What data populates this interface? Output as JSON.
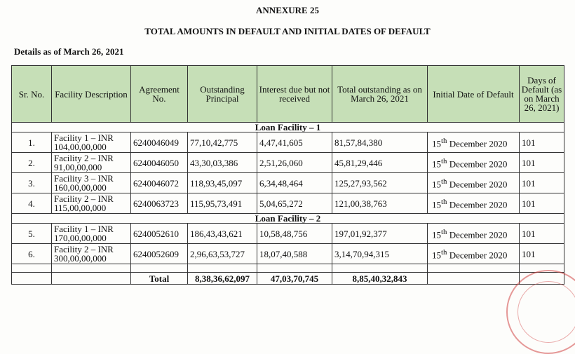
{
  "heading": "ANNEXURE 25",
  "subheading": "TOTAL AMOUNTS IN DEFAULT AND INITIAL DATES OF DEFAULT",
  "as_of": "Details as of March 26, 2021",
  "columns": {
    "sr": "Sr. No.",
    "desc": "Facility Description",
    "agreement": "Agreement No.",
    "principal": "Outstanding Principal",
    "interest": "Interest due but not received",
    "total": "Total outstanding as on March 26, 2021",
    "date": "Initial Date of Default",
    "days": "Days of Default (as on March 26, 2021)"
  },
  "sections": [
    {
      "title": "Loan Facility – 1",
      "rows": [
        {
          "sr": "1.",
          "desc": "Facility 1 – INR 104,00,00,000",
          "agreement": "6240046049",
          "principal": "77,10,42,775",
          "interest": "4,47,41,605",
          "total": "81,57,84,380",
          "day": "15",
          "day_suffix": "th",
          "date_rest": " December 2020",
          "days": "101"
        },
        {
          "sr": "2.",
          "desc": "Facility 2 – INR 91,00,00,000",
          "agreement": "6240046050",
          "principal": "43,30,03,386",
          "interest": "2,51,26,060",
          "total": "45,81,29,446",
          "day": "15",
          "day_suffix": "th",
          "date_rest": " December 2020",
          "days": "101"
        },
        {
          "sr": "3.",
          "desc": "Facility 3 – INR 160,00,00,000",
          "agreement": "6240046072",
          "principal": "118,93,45,097",
          "interest": "6,34,48,464",
          "total": "125,27,93,562",
          "day": "15",
          "day_suffix": "th",
          "date_rest": " December 2020",
          "days": "101"
        },
        {
          "sr": "4.",
          "desc": "Facility 2 – INR 115,00,00,000",
          "agreement": "6240063723",
          "principal": "115,95,73,491",
          "interest": "5,04,65,272",
          "total": "121,00,38,763",
          "day": "15",
          "day_suffix": "th",
          "date_rest": " December 2020",
          "days": "101"
        }
      ]
    },
    {
      "title": "Loan Facility – 2",
      "rows": [
        {
          "sr": "5.",
          "desc": "Facility 1 – INR 170,00,00,000",
          "agreement": "6240052610",
          "principal": "186,43,43,621",
          "interest": "10,58,48,756",
          "total": "197,01,92,377",
          "day": "15",
          "day_suffix": "th",
          "date_rest": " December 2020",
          "days": "101"
        },
        {
          "sr": "6.",
          "desc": "Facility 2 – INR 300,00,00,000",
          "agreement": "6240052609",
          "principal": "2,96,63,53,727",
          "interest": "18,07,40,588",
          "total": "3,14,70,94,315",
          "day": "15",
          "day_suffix": "th",
          "date_rest": " December 2020",
          "days": "101"
        }
      ]
    }
  ],
  "totals": {
    "label": "Total",
    "principal": "8,38,36,62,097",
    "interest": "47,03,70,745",
    "total": "8,85,40,32,843"
  },
  "colors": {
    "header_bg": "#c6dfb7",
    "stamp": "#d24646"
  }
}
